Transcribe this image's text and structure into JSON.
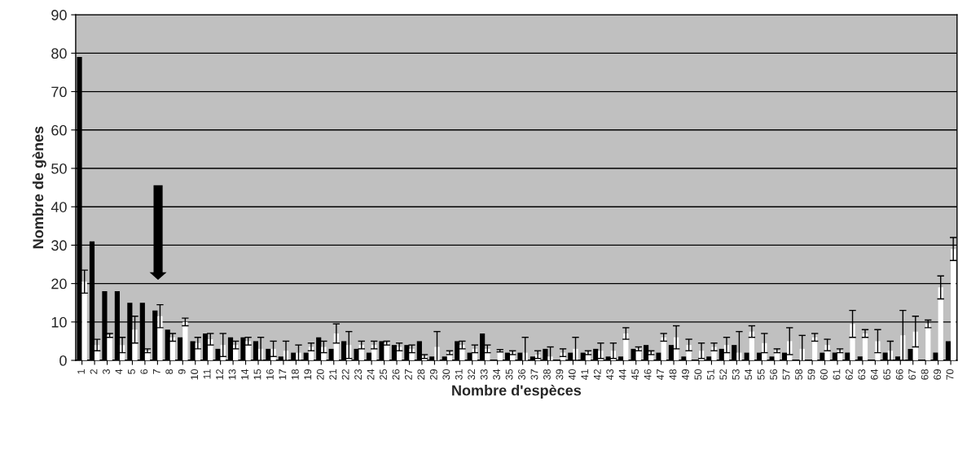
{
  "chart_data": {
    "type": "bar",
    "xlabel": "Nombre d'espèces",
    "ylabel": "Nombre de gènes",
    "categories": [
      "1",
      "2",
      "3",
      "4",
      "5",
      "6",
      "7",
      "8",
      "9",
      "10",
      "11",
      "12",
      "13",
      "14",
      "15",
      "16",
      "17",
      "18",
      "19",
      "20",
      "21",
      "22",
      "23",
      "24",
      "25",
      "26",
      "27",
      "28",
      "29",
      "30",
      "31",
      "32",
      "33",
      "34",
      "35",
      "36",
      "37",
      "38",
      "39",
      "40",
      "41",
      "42",
      "43",
      "44",
      "45",
      "46",
      "47",
      "48",
      "49",
      "50",
      "51",
      "52",
      "53",
      "54",
      "55",
      "56",
      "57",
      "58",
      "59",
      "60",
      "61",
      "62",
      "63",
      "64",
      "65",
      "66",
      "67",
      "68",
      "69",
      "70"
    ],
    "series": [
      {
        "color": "#000000",
        "values": [
          79,
          31,
          18,
          18,
          15,
          15,
          13,
          8,
          6,
          5,
          7,
          3,
          6,
          6,
          5,
          3,
          1,
          2,
          2,
          6,
          3,
          5,
          3,
          2,
          5,
          4,
          4,
          5,
          1,
          1,
          5,
          2,
          7,
          0,
          2,
          2,
          1,
          3,
          0,
          2,
          2,
          3,
          1,
          1,
          3,
          4,
          2,
          4,
          1,
          0,
          1,
          3,
          4,
          2,
          2,
          1,
          2,
          0,
          0,
          2,
          2,
          2,
          1,
          0,
          2,
          1,
          3,
          0,
          2,
          5
        ]
      },
      {
        "color": "#ffffff",
        "values": [
          20.5,
          4,
          6.5,
          4,
          8,
          2.5,
          11.5,
          6,
          10,
          4.5,
          5.5,
          4,
          4,
          5,
          3,
          3,
          2.5,
          2,
          3.5,
          3.5,
          7,
          4,
          4,
          4,
          4.5,
          3.5,
          3,
          1,
          3.5,
          2,
          4,
          3,
          3,
          2.5,
          2,
          2,
          1.5,
          1,
          2,
          3,
          2,
          2.5,
          2.5,
          7,
          3,
          2,
          6,
          6,
          4,
          2.5,
          3.5,
          4,
          2,
          7.5,
          4.5,
          2.5,
          5,
          3,
          6,
          4,
          2.5,
          9.5,
          7,
          5,
          2.5,
          6.5,
          7.5,
          9.5,
          19,
          29
        ],
        "errors": [
          3,
          1.5,
          0.5,
          2,
          3.5,
          0.5,
          3,
          1,
          1,
          1.5,
          1.5,
          3,
          1,
          1,
          3,
          2,
          2.5,
          2,
          1,
          1.5,
          2.5,
          3.5,
          1,
          1,
          0.5,
          1,
          1,
          0.5,
          4,
          0.5,
          1,
          1,
          1,
          0.3,
          0.5,
          4,
          1,
          2.5,
          1,
          3,
          0.5,
          2,
          2,
          1.5,
          0.5,
          0.5,
          1,
          3,
          1.5,
          2,
          1,
          2,
          5.5,
          1.5,
          2.5,
          0.5,
          3.5,
          3.5,
          1,
          1.5,
          0.5,
          3.5,
          1,
          3,
          2.5,
          6.5,
          4,
          1,
          3,
          3
        ]
      }
    ],
    "ylim": [
      0,
      90
    ],
    "yticks": [
      0,
      10,
      20,
      30,
      40,
      50,
      60,
      70,
      80,
      90
    ],
    "grid": "y",
    "legend": false
  }
}
